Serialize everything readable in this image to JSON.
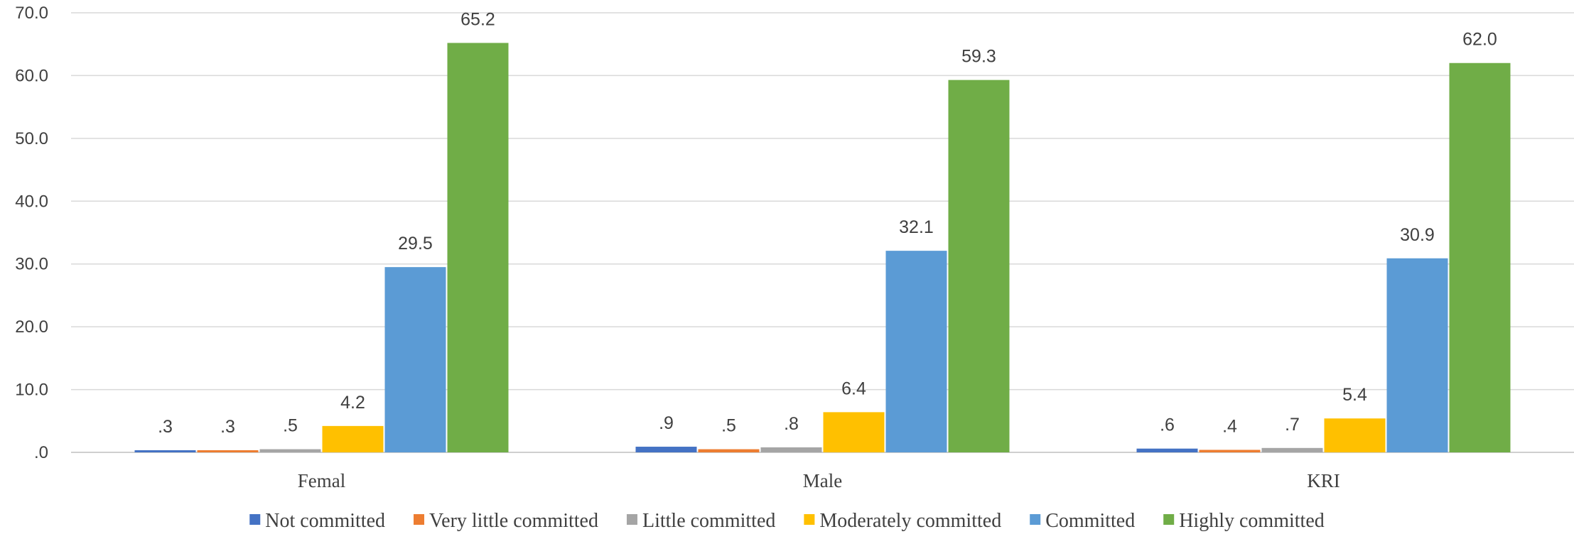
{
  "chart_data": {
    "type": "bar",
    "categories": [
      "Femal",
      "Male",
      "KRI"
    ],
    "series": [
      {
        "name": "Not committed",
        "color": "#4472C4",
        "values": [
          0.3,
          0.9,
          0.6
        ],
        "labels": [
          ".3",
          ".9",
          ".6"
        ]
      },
      {
        "name": "Very little  committed",
        "color": "#ED7D31",
        "values": [
          0.3,
          0.5,
          0.4
        ],
        "labels": [
          ".3",
          ".5",
          ".4"
        ]
      },
      {
        "name": "Little committed",
        "color": "#A5A5A5",
        "values": [
          0.5,
          0.8,
          0.7
        ],
        "labels": [
          ".5",
          ".8",
          ".7"
        ]
      },
      {
        "name": "Moderately committed",
        "color": "#FFC000",
        "values": [
          4.2,
          6.4,
          5.4
        ],
        "labels": [
          "4.2",
          "6.4",
          "5.4"
        ]
      },
      {
        "name": "Committed",
        "color": "#5B9BD5",
        "values": [
          29.5,
          32.1,
          30.9
        ],
        "labels": [
          "29.5",
          "32.1",
          "30.9"
        ]
      },
      {
        "name": "Highly committed",
        "color": "#70AD47",
        "values": [
          65.2,
          59.3,
          62.0
        ],
        "labels": [
          "65.2",
          "59.3",
          "62.0"
        ]
      }
    ],
    "yticks": [
      ".0",
      "10.0",
      "20.0",
      "30.0",
      "40.0",
      "50.0",
      "60.0",
      "70.0"
    ],
    "ylim": [
      0,
      70
    ],
    "grid": true,
    "legend_position": "bottom",
    "title": "",
    "xlabel": "",
    "ylabel": ""
  }
}
